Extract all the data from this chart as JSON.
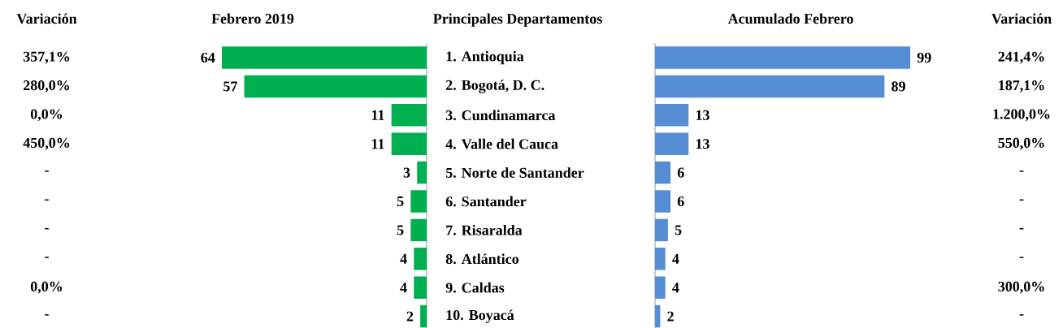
{
  "chart_data": [
    {
      "type": "other",
      "title": "Variación",
      "annotations": [
        "357,1%",
        "280,0%",
        "0,0%",
        "450,0%",
        "-",
        "-",
        "-",
        "-",
        "0,0%",
        "-"
      ]
    },
    {
      "type": "bar",
      "orientation": "horizontal",
      "title": "Febrero 2019",
      "ylabel": "Principales Departamentos",
      "categories": [
        "1. Antioquia",
        "2. Bogotá, D. C.",
        "3. Cundinamarca",
        "4. Valle del Cauca",
        "5. Norte de Santander",
        "6. Santander",
        "7. Risaralda",
        "8. Atlántico",
        "9. Caldas",
        "10. Boyacá"
      ],
      "values": [
        64,
        57,
        11,
        11,
        3,
        5,
        5,
        4,
        4,
        2
      ],
      "color": "#00b050",
      "data_labels": true,
      "tick_labels": "y"
    },
    {
      "type": "bar",
      "orientation": "horizontal",
      "title": "Acumulado Febrero",
      "categories": [
        null,
        null,
        null,
        null,
        null,
        null,
        null,
        null,
        null,
        null
      ],
      "values": [
        99,
        89,
        13,
        13,
        6,
        6,
        5,
        4,
        4,
        2
      ],
      "color": "#558ed5",
      "data_labels": true
    },
    {
      "type": "other",
      "title": "Variación",
      "annotations": [
        "241,4%",
        "187,1%",
        "1.200,0%",
        "550,0%",
        "-",
        "-",
        "-",
        "-",
        "300,0%",
        "-"
      ]
    }
  ]
}
